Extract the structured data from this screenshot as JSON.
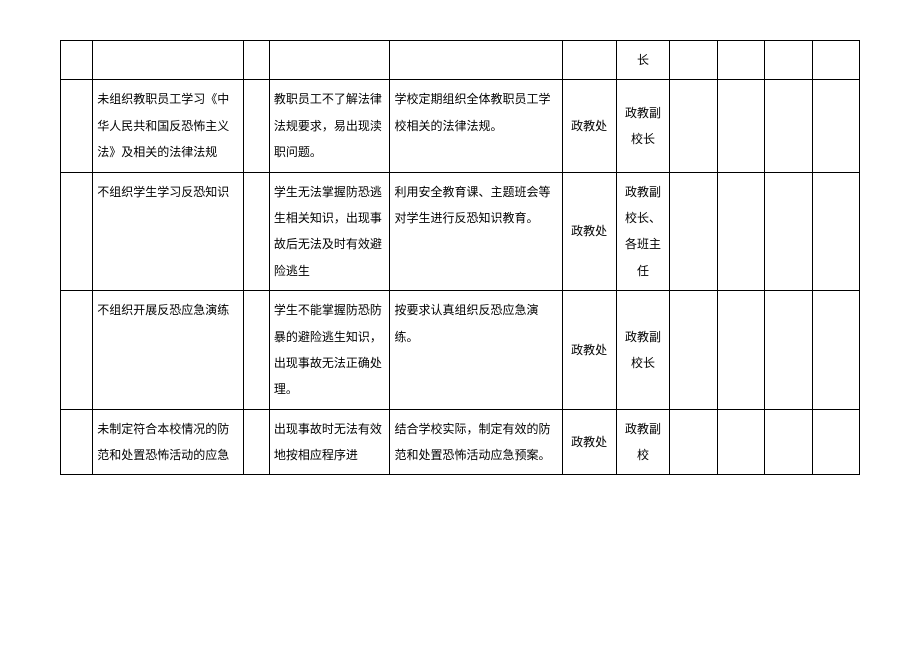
{
  "columns": {
    "c0_width": 30,
    "c1_width": 140,
    "c2_width": 24,
    "c3_width": 112,
    "c4_width": 160,
    "c5_width": 50,
    "c6_width": 50,
    "c7_width": 44,
    "c8_width": 44,
    "c9_width": 44,
    "c10_width": 44
  },
  "rows": [
    {
      "c0": "",
      "c1": "",
      "c2": "",
      "c3": "",
      "c4": "",
      "c5": "",
      "c6": "长",
      "c7": "",
      "c8": "",
      "c9": "",
      "c10": ""
    },
    {
      "c0": "",
      "c1": "未组织教职员工学习《中华人民共和国反恐怖主义法》及相关的法律法规",
      "c2": "",
      "c3": "教职员工不了解法律法规要求，易出现渎职问题。",
      "c4": "学校定期组织全体教职员工学校相关的法律法规。",
      "c5": "政教处",
      "c6": "政教副校长",
      "c7": "",
      "c8": "",
      "c9": "",
      "c10": ""
    },
    {
      "c0": "",
      "c1": "不组织学生学习反恐知识",
      "c2": "",
      "c3": "学生无法掌握防恐逃生相关知识，出现事故后无法及时有效避险逃生",
      "c4": "利用安全教育课、主题班会等对学生进行反恐知识教育。",
      "c5": "政教处",
      "c6": "政教副校长、各班主任",
      "c7": "",
      "c8": "",
      "c9": "",
      "c10": ""
    },
    {
      "c0": "",
      "c1": "不组织开展反恐应急演练",
      "c2": "",
      "c3": "学生不能掌握防恐防暴的避险逃生知识，出现事故无法正确处理。",
      "c4": "按要求认真组织反恐应急演练。",
      "c5": "政教处",
      "c6": "政教副校长",
      "c7": "",
      "c8": "",
      "c9": "",
      "c10": ""
    },
    {
      "c0": "",
      "c1": "未制定符合本校情况的防范和处置恐怖活动的应急",
      "c2": "",
      "c3": "出现事故时无法有效地按相应程序进",
      "c4": "结合学校实际，制定有效的防范和处置恐怖活动应急预案。",
      "c5": "政教处",
      "c6": "政教副校",
      "c7": "",
      "c8": "",
      "c9": "",
      "c10": ""
    }
  ]
}
